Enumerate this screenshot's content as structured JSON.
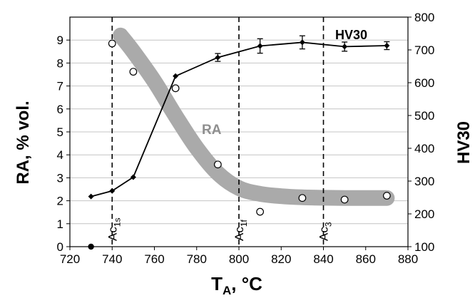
{
  "chart_data": {
    "type": "line",
    "xlabel": {
      "main": "T",
      "sub": "A",
      "rest": ", °C"
    },
    "ylabel": "RA, % vol.",
    "y2label": "HV30",
    "xlim": [
      720,
      880
    ],
    "ylim": [
      0,
      10
    ],
    "y2lim": [
      100,
      800
    ],
    "xticks": [
      720,
      740,
      760,
      780,
      800,
      820,
      840,
      860,
      880
    ],
    "yticks": [
      0,
      1,
      2,
      3,
      4,
      5,
      6,
      7,
      8,
      9
    ],
    "y2ticks": [
      100,
      200,
      300,
      400,
      500,
      600,
      700,
      800
    ],
    "grid": "horizontal",
    "ra_points": {
      "x": [
        740,
        750,
        770,
        790,
        810,
        830,
        850,
        870
      ],
      "y": [
        8.85,
        7.62,
        6.9,
        3.58,
        1.52,
        2.12,
        2.05,
        2.22
      ]
    },
    "ra_origin_point": {
      "x": 730,
      "y": 0
    },
    "ra_trend": {
      "label": "RA",
      "color": "#aaaaaa",
      "x": [
        744,
        750,
        760,
        770,
        780,
        790,
        800,
        810,
        820,
        830,
        840,
        850,
        860,
        870
      ],
      "y": [
        9.2,
        8.5,
        7.2,
        5.7,
        4.3,
        3.2,
        2.55,
        2.3,
        2.2,
        2.15,
        2.13,
        2.12,
        2.12,
        2.12
      ]
    },
    "series": [
      {
        "name": "HV30",
        "axis": "right",
        "x": [
          730,
          740,
          750,
          770,
          790,
          810,
          830,
          850,
          870
        ],
        "y": [
          253,
          270,
          312,
          620,
          677,
          712,
          723,
          710,
          713
        ],
        "err": [
          0,
          0,
          0,
          0,
          12,
          22,
          20,
          14,
          12
        ]
      }
    ],
    "vlines": [
      {
        "x": 740,
        "label": "Ac",
        "sub": "1s"
      },
      {
        "x": 800,
        "label": "Ac",
        "sub": "1f"
      },
      {
        "x": 840,
        "label": "Ac",
        "sub": "3"
      }
    ]
  }
}
